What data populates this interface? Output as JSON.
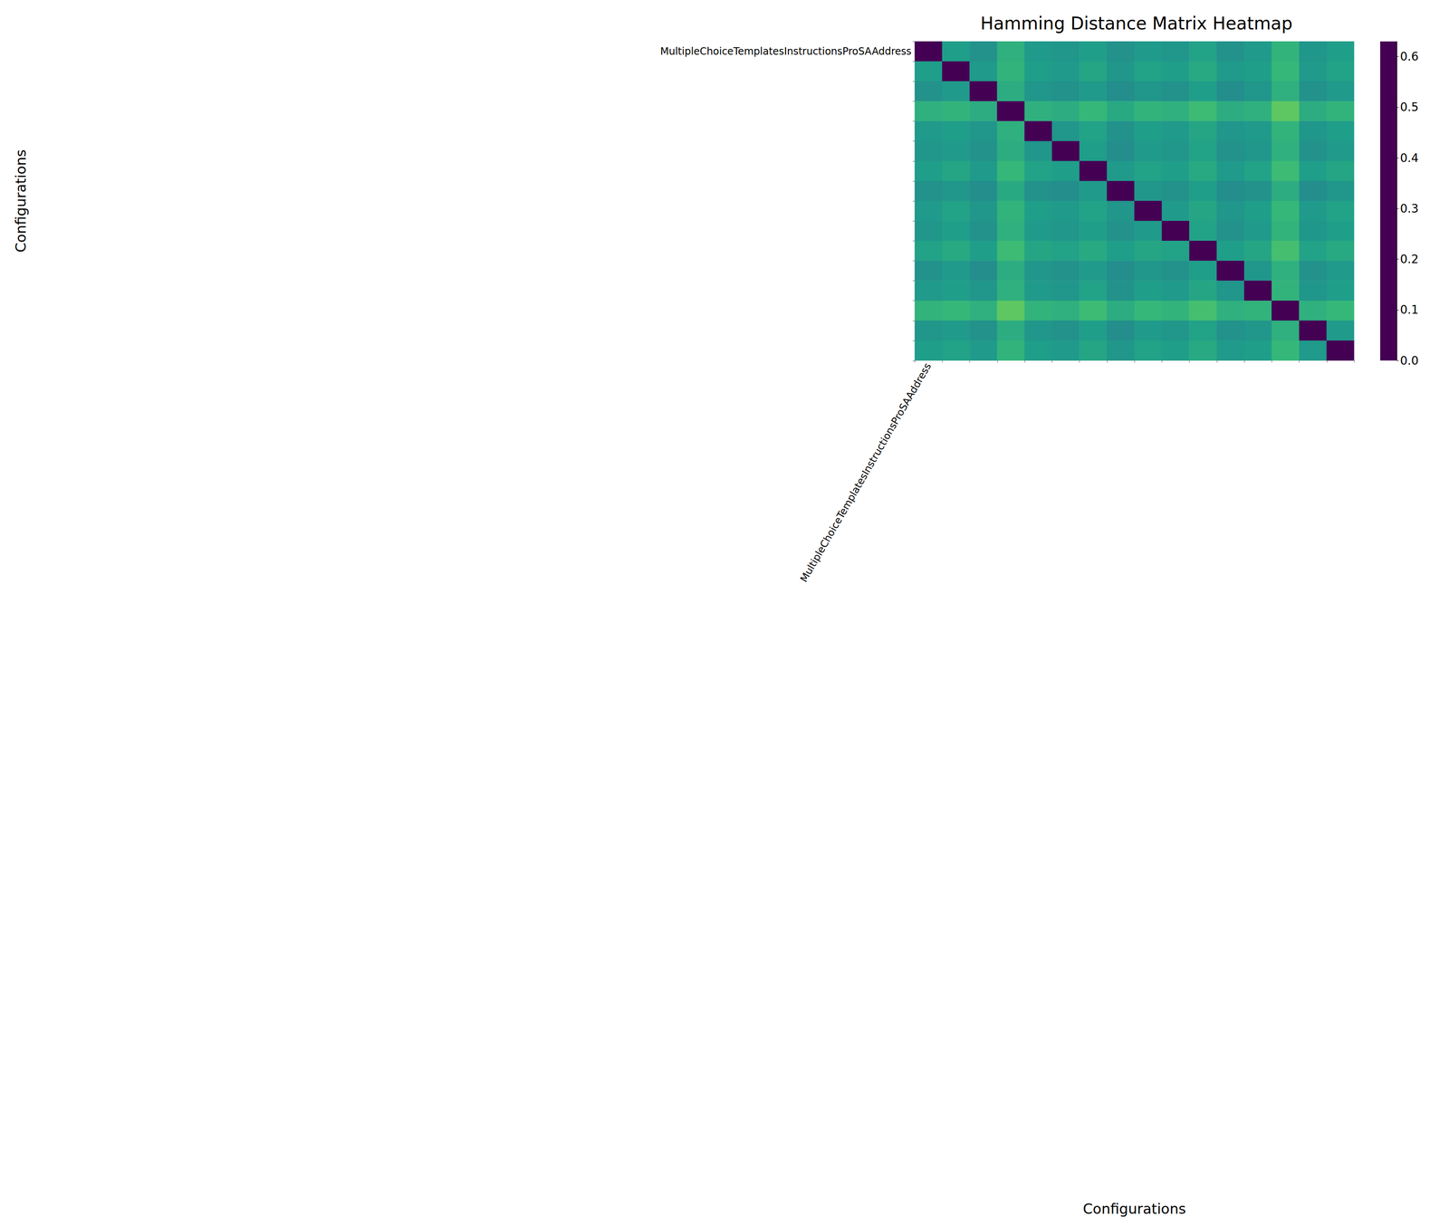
{
  "chart_data": {
    "type": "heatmap",
    "title": "Hamming Distance Matrix Heatmap",
    "xlabel": "Configurations",
    "ylabel": "Configurations",
    "categories": [
      "MultipleChoiceTemplatesInstructionsProSAAddress",
      null,
      null,
      null,
      null,
      null,
      null,
      null,
      null,
      null,
      null,
      null,
      null,
      null,
      null,
      null
    ],
    "cells": [
      [
        0,
        0.35,
        0.32,
        0.4,
        0.34,
        0.33,
        0.35,
        0.32,
        0.34,
        0.33,
        0.36,
        0.32,
        0.34,
        0.41,
        0.33,
        0.35
      ],
      [
        0.35,
        0,
        0.34,
        0.41,
        0.35,
        0.34,
        0.37,
        0.33,
        0.36,
        0.35,
        0.38,
        0.34,
        0.35,
        0.42,
        0.34,
        0.36
      ],
      [
        0.32,
        0.34,
        0,
        0.39,
        0.33,
        0.32,
        0.34,
        0.31,
        0.33,
        0.32,
        0.35,
        0.31,
        0.33,
        0.4,
        0.32,
        0.34
      ],
      [
        0.4,
        0.41,
        0.39,
        0,
        0.4,
        0.39,
        0.42,
        0.38,
        0.41,
        0.4,
        0.43,
        0.39,
        0.4,
        0.47,
        0.39,
        0.41
      ],
      [
        0.34,
        0.35,
        0.33,
        0.4,
        0,
        0.33,
        0.36,
        0.32,
        0.35,
        0.34,
        0.37,
        0.33,
        0.34,
        0.41,
        0.33,
        0.35
      ],
      [
        0.33,
        0.34,
        0.32,
        0.39,
        0.33,
        0,
        0.35,
        0.31,
        0.34,
        0.33,
        0.36,
        0.32,
        0.33,
        0.4,
        0.32,
        0.34
      ],
      [
        0.35,
        0.37,
        0.34,
        0.42,
        0.36,
        0.35,
        0,
        0.34,
        0.36,
        0.35,
        0.38,
        0.34,
        0.36,
        0.43,
        0.35,
        0.37
      ],
      [
        0.32,
        0.33,
        0.31,
        0.38,
        0.32,
        0.31,
        0.34,
        0,
        0.33,
        0.32,
        0.35,
        0.31,
        0.32,
        0.39,
        0.31,
        0.33
      ],
      [
        0.34,
        0.36,
        0.33,
        0.41,
        0.35,
        0.34,
        0.36,
        0.33,
        0,
        0.34,
        0.37,
        0.33,
        0.35,
        0.42,
        0.34,
        0.36
      ],
      [
        0.33,
        0.35,
        0.32,
        0.4,
        0.34,
        0.33,
        0.35,
        0.32,
        0.34,
        0,
        0.36,
        0.32,
        0.34,
        0.41,
        0.33,
        0.35
      ],
      [
        0.36,
        0.38,
        0.35,
        0.43,
        0.37,
        0.36,
        0.38,
        0.35,
        0.37,
        0.36,
        0,
        0.35,
        0.37,
        0.44,
        0.36,
        0.38
      ],
      [
        0.32,
        0.34,
        0.31,
        0.39,
        0.33,
        0.32,
        0.34,
        0.31,
        0.33,
        0.32,
        0.35,
        0,
        0.33,
        0.4,
        0.32,
        0.34
      ],
      [
        0.34,
        0.35,
        0.33,
        0.4,
        0.34,
        0.33,
        0.36,
        0.32,
        0.35,
        0.34,
        0.37,
        0.33,
        0,
        0.41,
        0.33,
        0.35
      ],
      [
        0.41,
        0.42,
        0.4,
        0.47,
        0.41,
        0.4,
        0.43,
        0.39,
        0.42,
        0.41,
        0.44,
        0.4,
        0.41,
        0,
        0.4,
        0.42
      ],
      [
        0.33,
        0.34,
        0.32,
        0.39,
        0.33,
        0.32,
        0.35,
        0.31,
        0.34,
        0.33,
        0.36,
        0.32,
        0.33,
        0.4,
        0,
        0.34
      ],
      [
        0.35,
        0.36,
        0.34,
        0.41,
        0.35,
        0.34,
        0.37,
        0.33,
        0.36,
        0.35,
        0.38,
        0.34,
        0.35,
        0.42,
        0.34,
        0
      ]
    ],
    "colorbar": {
      "range": [
        0,
        0.63
      ],
      "ticks": [
        {
          "value": 0,
          "label": "0.0"
        },
        0.1,
        0.2,
        0.3,
        0.4,
        0.5,
        0.6
      ],
      "color": "viridis"
    }
  }
}
